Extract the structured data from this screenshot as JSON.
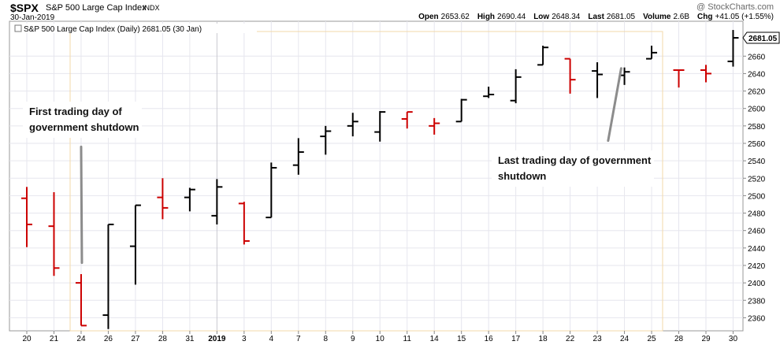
{
  "header": {
    "symbol": "$SPX",
    "name": "S&P 500 Large Cap Index",
    "exchange": "INDX",
    "brand": "@ StockCharts.com",
    "date": "30-Jan-2019",
    "stats": [
      {
        "label": "Open",
        "value": "2653.62"
      },
      {
        "label": "High",
        "value": "2690.44"
      },
      {
        "label": "Low",
        "value": "2648.34"
      },
      {
        "label": "Last",
        "value": "2681.05"
      },
      {
        "label": "Volume",
        "value": "2.6B"
      },
      {
        "label": "Chg",
        "value": "+41.05 (+1.55%)"
      }
    ]
  },
  "colors": {
    "up": "#000000",
    "down": "#cc0000",
    "grid": "#e6e6ee",
    "annotation_line": "#8c8c8c",
    "last_marker": "#000000"
  },
  "chart_data": {
    "type": "ohlc",
    "legend": "S&P 500 Large Cap Index (Daily) 2681.05 (30 Jan)",
    "last_value": "2681.05",
    "x_tick_labels": [
      "20",
      "21",
      "24",
      "26",
      "27",
      "28",
      "31",
      "2019",
      "3",
      "4",
      "7",
      "8",
      "9",
      "10",
      "11",
      "14",
      "15",
      "16",
      "17",
      "18",
      "22",
      "23",
      "24",
      "25",
      "28",
      "29",
      "30"
    ],
    "ylim": [
      2345,
      2700
    ],
    "y_ticks": [
      2360,
      2380,
      2400,
      2420,
      2440,
      2460,
      2480,
      2500,
      2520,
      2540,
      2560,
      2580,
      2600,
      2620,
      2640,
      2660
    ],
    "grid": true,
    "bars": [
      {
        "x": "20",
        "open": 2497,
        "high": 2510,
        "low": 2441,
        "close": 2467,
        "dir": "down"
      },
      {
        "x": "21",
        "open": 2465,
        "high": 2504,
        "low": 2408,
        "close": 2417,
        "dir": "down"
      },
      {
        "x": "24",
        "open": 2400,
        "high": 2410,
        "low": 2351,
        "close": 2351,
        "dir": "down"
      },
      {
        "x": "26",
        "open": 2363,
        "high": 2467,
        "low": 2347,
        "close": 2467,
        "dir": "up"
      },
      {
        "x": "27",
        "open": 2442,
        "high": 2489,
        "low": 2398,
        "close": 2489,
        "dir": "up"
      },
      {
        "x": "28",
        "open": 2498,
        "high": 2520,
        "low": 2473,
        "close": 2486,
        "dir": "down"
      },
      {
        "x": "31",
        "open": 2498,
        "high": 2509,
        "low": 2482,
        "close": 2507,
        "dir": "up"
      },
      {
        "x": "2019",
        "open": 2477,
        "high": 2519,
        "low": 2467,
        "close": 2510,
        "dir": "up"
      },
      {
        "x": "3",
        "open": 2491,
        "high": 2493,
        "low": 2444,
        "close": 2448,
        "dir": "down"
      },
      {
        "x": "4",
        "open": 2475,
        "high": 2538,
        "low": 2475,
        "close": 2532,
        "dir": "up"
      },
      {
        "x": "7",
        "open": 2535,
        "high": 2566,
        "low": 2524,
        "close": 2550,
        "dir": "up"
      },
      {
        "x": "8",
        "open": 2568,
        "high": 2580,
        "low": 2547,
        "close": 2574,
        "dir": "up"
      },
      {
        "x": "9",
        "open": 2580,
        "high": 2595,
        "low": 2568,
        "close": 2585,
        "dir": "up"
      },
      {
        "x": "10",
        "open": 2573,
        "high": 2597,
        "low": 2562,
        "close": 2596,
        "dir": "up"
      },
      {
        "x": "11",
        "open": 2588,
        "high": 2596,
        "low": 2577,
        "close": 2596,
        "dir": "down"
      },
      {
        "x": "14",
        "open": 2580,
        "high": 2589,
        "low": 2570,
        "close": 2583,
        "dir": "down"
      },
      {
        "x": "15",
        "open": 2585,
        "high": 2611,
        "low": 2585,
        "close": 2610,
        "dir": "up"
      },
      {
        "x": "16",
        "open": 2614,
        "high": 2625,
        "low": 2612,
        "close": 2616,
        "dir": "up"
      },
      {
        "x": "17",
        "open": 2609,
        "high": 2645,
        "low": 2606,
        "close": 2636,
        "dir": "up"
      },
      {
        "x": "18",
        "open": 2650,
        "high": 2672,
        "low": 2650,
        "close": 2670,
        "dir": "up"
      },
      {
        "x": "22",
        "open": 2657,
        "high": 2657,
        "low": 2617,
        "close": 2633,
        "dir": "down"
      },
      {
        "x": "23",
        "open": 2643,
        "high": 2653,
        "low": 2612,
        "close": 2639,
        "dir": "up"
      },
      {
        "x": "24",
        "open": 2638,
        "high": 2647,
        "low": 2627,
        "close": 2642,
        "dir": "up"
      },
      {
        "x": "25",
        "open": 2657,
        "high": 2672,
        "low": 2657,
        "close": 2664,
        "dir": "up"
      },
      {
        "x": "28",
        "open": 2644,
        "high": 2644,
        "low": 2624,
        "close": 2644,
        "dir": "down"
      },
      {
        "x": "29",
        "open": 2644,
        "high": 2650,
        "low": 2630,
        "close": 2640,
        "dir": "down"
      },
      {
        "x": "30",
        "open": 2654,
        "high": 2690,
        "low": 2648,
        "close": 2681,
        "dir": "up"
      }
    ],
    "annotations": [
      {
        "text": [
          "First trading day of",
          "government shutdown"
        ],
        "x": "24",
        "from": 2556,
        "to": 2423
      },
      {
        "text": [
          "Last trading day of government",
          "shutdown"
        ],
        "x_from": 21.4,
        "from": 2563,
        "x_to": 21.88,
        "to": 2646
      }
    ]
  }
}
